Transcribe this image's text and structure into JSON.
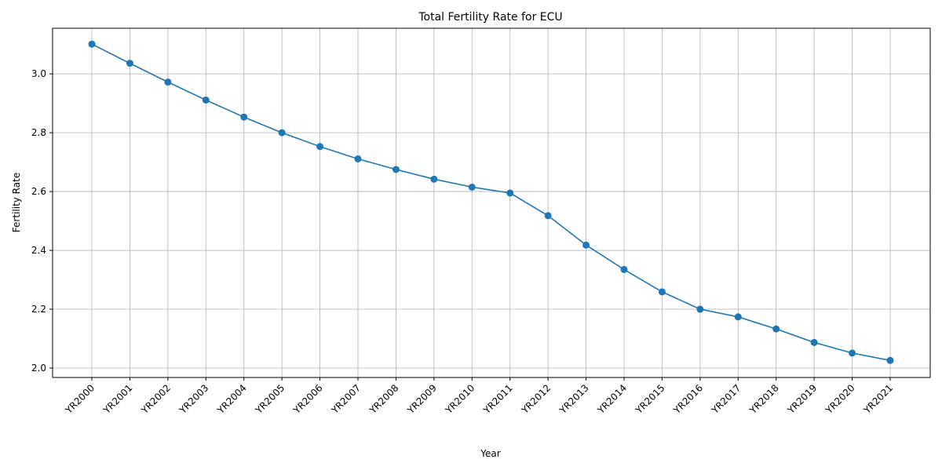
{
  "chart_data": {
    "type": "line",
    "title": "Total Fertility Rate for ECU",
    "xlabel": "Year",
    "ylabel": "Fertility Rate",
    "categories": [
      "YR2000",
      "YR2001",
      "YR2002",
      "YR2003",
      "YR2004",
      "YR2005",
      "YR2006",
      "YR2007",
      "YR2008",
      "YR2009",
      "YR2010",
      "YR2011",
      "YR2012",
      "YR2013",
      "YR2014",
      "YR2015",
      "YR2016",
      "YR2017",
      "YR2018",
      "YR2019",
      "YR2020",
      "YR2021"
    ],
    "series": [
      {
        "values": [
          3.101,
          3.036,
          2.972,
          2.911,
          2.853,
          2.8,
          2.753,
          2.711,
          2.675,
          2.642,
          2.615,
          2.595,
          2.518,
          2.418,
          2.335,
          2.259,
          2.2,
          2.174,
          2.133,
          2.087,
          2.051,
          2.026
        ],
        "color": "#1f77b4",
        "marker": "circle"
      }
    ],
    "yticks": [
      "2.0",
      "2.2",
      "2.4",
      "2.6",
      "2.8",
      "3.0"
    ],
    "ylim": [
      1.968,
      3.155
    ],
    "grid": true,
    "legend": "none"
  }
}
